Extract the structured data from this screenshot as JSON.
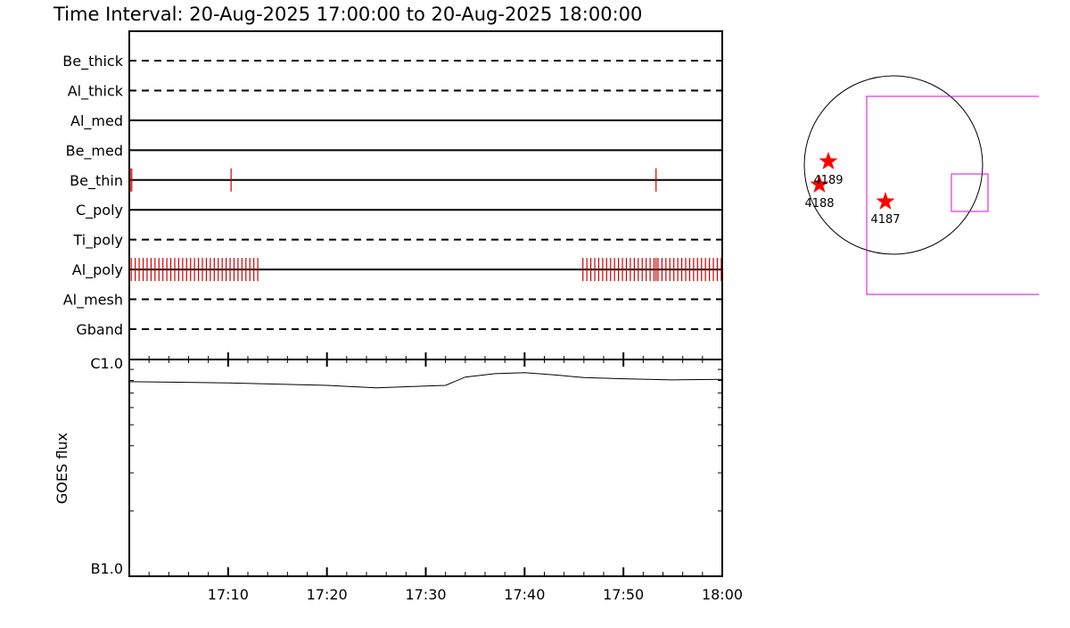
{
  "title": "Time Interval: 20-Aug-2025 17:00:00 to 20-Aug-2025 18:00:00",
  "chart_data": [
    {
      "type": "timeline",
      "categories": [
        "Be_thick",
        "Al_thick",
        "Al_med",
        "Be_med",
        "Be_thin",
        "C_poly",
        "Ti_poly",
        "Al_poly",
        "Al_mesh",
        "Gband"
      ],
      "line_styles": [
        "dashed",
        "dashed",
        "solid",
        "solid",
        "solid",
        "solid",
        "dashed",
        "solid",
        "dashed",
        "dashed"
      ],
      "color": "#cc0000",
      "events": [
        [],
        [],
        [],
        [],
        [
          0.1,
          0.25,
          10.3,
          53.3
        ],
        [],
        [],
        [
          0.2,
          0.6,
          1.0,
          1.4,
          1.8,
          2.2,
          2.6,
          3.0,
          3.4,
          3.8,
          4.2,
          4.6,
          5.0,
          5.4,
          5.8,
          6.2,
          6.6,
          7.0,
          7.4,
          7.8,
          8.2,
          8.6,
          9.0,
          9.4,
          9.8,
          10.2,
          10.6,
          11.0,
          11.4,
          11.8,
          12.2,
          12.6,
          13.0,
          45.9,
          46.3,
          46.7,
          47.1,
          47.5,
          47.9,
          48.3,
          48.7,
          49.1,
          49.5,
          49.9,
          50.3,
          50.7,
          51.1,
          51.5,
          51.9,
          52.3,
          52.7,
          53.1,
          53.3,
          53.5,
          53.9,
          54.3,
          54.7,
          55.1,
          55.5,
          55.9,
          56.3,
          56.7,
          57.1,
          57.5,
          57.9,
          58.3,
          58.7,
          59.1,
          59.5,
          59.9
        ],
        [],
        []
      ]
    },
    {
      "type": "line",
      "y_label": "GOES flux",
      "log_y": true,
      "color": "#000000",
      "x": [
        0,
        5,
        10,
        15,
        20,
        25,
        30,
        32,
        34,
        37,
        40,
        43,
        46,
        50,
        55,
        60
      ],
      "values": [
        7.9e-06,
        7.85e-06,
        7.8e-06,
        7.7e-06,
        7.6e-06,
        7.4e-06,
        7.55e-06,
        7.6e-06,
        8.3e-06,
        8.6e-06,
        8.7e-06,
        8.5e-06,
        8.25e-06,
        8.15e-06,
        8.05e-06,
        8.1e-06
      ],
      "xlim": [
        0,
        60
      ],
      "xticks": [
        {
          "value": 10,
          "label": "17:10"
        },
        {
          "value": 20,
          "label": "17:20"
        },
        {
          "value": 30,
          "label": "17:30"
        },
        {
          "value": 40,
          "label": "17:40"
        },
        {
          "value": 50,
          "label": "17:50"
        },
        {
          "value": 60,
          "label": "18:00"
        }
      ],
      "ylim": [
        1e-06,
        1e-05
      ],
      "yticks": [
        {
          "value": 1e-06,
          "label": "B1.0"
        },
        {
          "value": 1e-05,
          "label": "C1.0"
        }
      ],
      "yminor": [
        2e-06,
        3e-06,
        4e-06,
        5e-06,
        6e-06,
        7e-06,
        8e-06,
        9e-06
      ]
    }
  ],
  "map": {
    "regions": [
      "4189",
      "4188",
      "4187"
    ]
  }
}
